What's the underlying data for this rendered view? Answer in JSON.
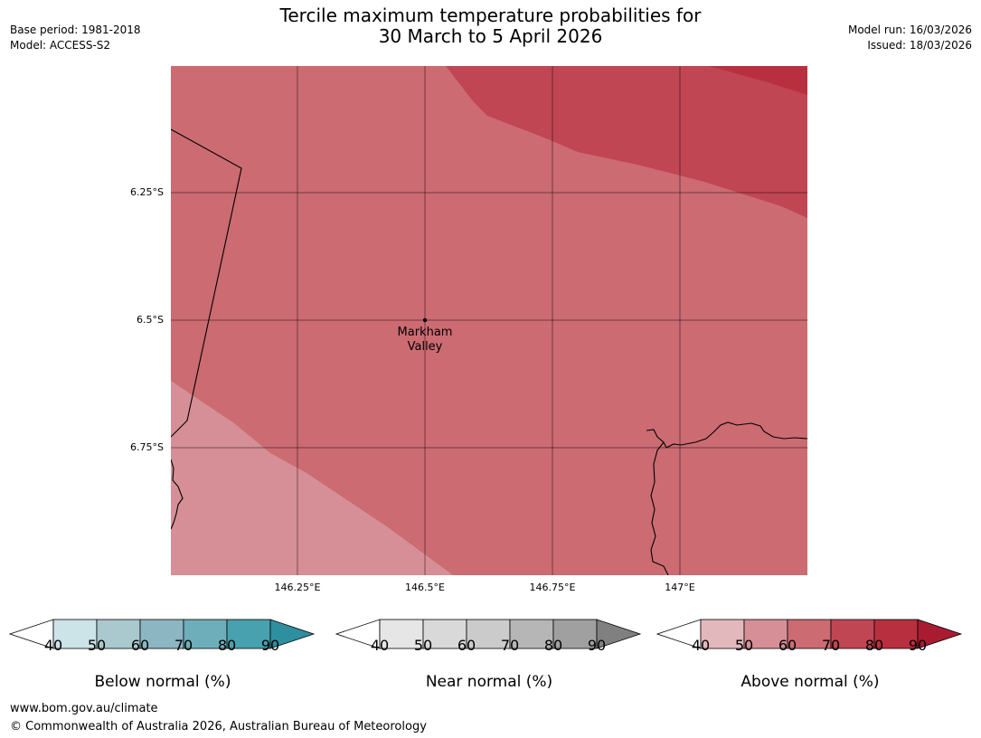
{
  "title": {
    "line1": "Tercile maximum temperature probabilities for",
    "line2": "30 March to 5 April 2026"
  },
  "meta": {
    "base_period": "Base period: 1981-2018",
    "model": "Model: ACCESS-S2",
    "model_run": "Model run: 16/03/2026",
    "issued": "Issued: 18/03/2026"
  },
  "map": {
    "latitude_labels": [
      "6.25°S",
      "6.5°S",
      "6.75°S"
    ],
    "longitude_labels": [
      "146.25°E",
      "146.5°E",
      "146.75°E",
      "147°E"
    ],
    "place": {
      "name_line1": "Markham",
      "name_line2": "Valley"
    },
    "region_colors": {
      "above_60": "#cc6b72",
      "above_50": "#d68f96",
      "above_70": "#c04654",
      "above_80": "#b8303f"
    }
  },
  "legends": [
    {
      "title": "Below normal (%)",
      "ticks": [
        "40",
        "50",
        "60",
        "70",
        "80",
        "90"
      ],
      "colors": [
        "#cce3e8",
        "#a9c9cf",
        "#8cb7c2",
        "#6eaebb",
        "#48a1ae",
        "#2e8f9e"
      ]
    },
    {
      "title": "Near normal (%)",
      "ticks": [
        "40",
        "50",
        "60",
        "70",
        "80",
        "90"
      ],
      "colors": [
        "#e6e6e6",
        "#d9d9d9",
        "#cbcbcb",
        "#b6b6b6",
        "#a0a0a0",
        "#808080"
      ]
    },
    {
      "title": "Above normal (%)",
      "ticks": [
        "40",
        "50",
        "60",
        "70",
        "80",
        "90"
      ],
      "colors": [
        "#e3b8bd",
        "#d68f96",
        "#cc6b72",
        "#c04654",
        "#b8303f",
        "#a81c32"
      ]
    }
  ],
  "footer": {
    "url": "www.bom.gov.au/climate",
    "copyright": "© Commonwealth of Australia 2026, Australian Bureau of Meteorology"
  }
}
